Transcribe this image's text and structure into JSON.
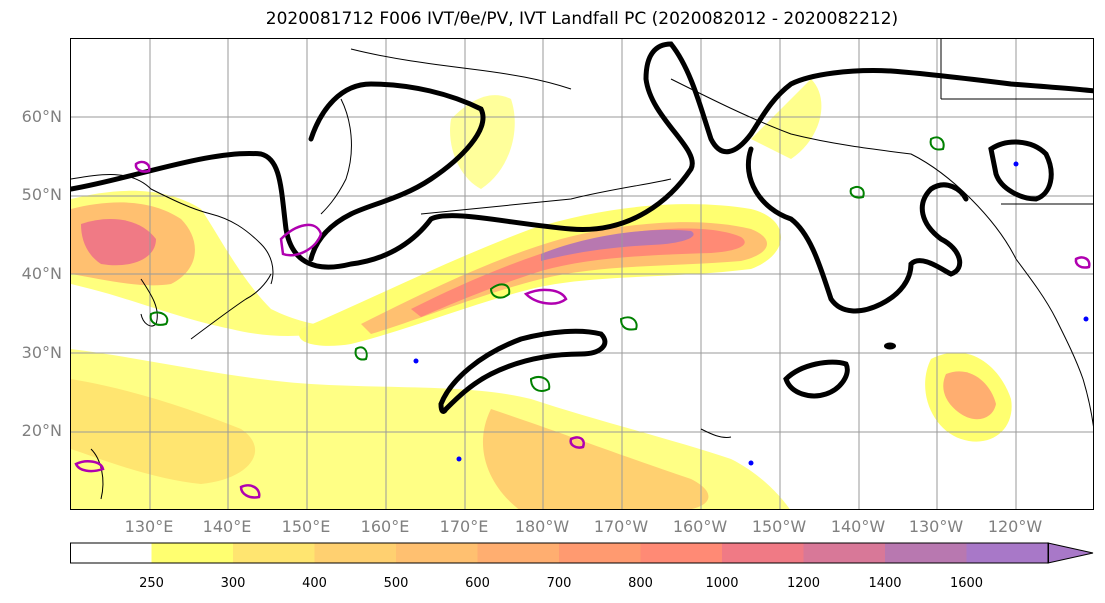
{
  "title": "2020081712 F006 IVT/θe/PV, IVT Landfall PC (2020082012 - 2020082212)",
  "map": {
    "lat_labels": [
      "60°N",
      "50°N",
      "40°N",
      "30°N",
      "20°N"
    ],
    "lon_labels": [
      "130°E",
      "140°E",
      "150°E",
      "160°E",
      "170°E",
      "180°W",
      "170°W",
      "160°W",
      "150°W",
      "140°W",
      "130°W",
      "120°W"
    ],
    "extent": {
      "lon_min": 120,
      "lon_max": 250,
      "lat_min": 10,
      "lat_max": 70
    },
    "gridlines": true,
    "colors": {
      "theta_e_contour": "#000000",
      "pv_green": "#008000",
      "pv_magenta": "#b000b0",
      "pv_blue": "#0000ff"
    }
  },
  "colorbar": {
    "ticks": [
      "250",
      "300",
      "400",
      "500",
      "600",
      "700",
      "800",
      "1000",
      "1200",
      "1400",
      "1600"
    ],
    "colors": [
      "#ffffff",
      "#ffff70",
      "#ffe570",
      "#ffd070",
      "#ffc070",
      "#ffae70",
      "#ff9a70",
      "#ff8a75",
      "#f07a85",
      "#d87898",
      "#b878b0",
      "#a878c8"
    ],
    "extend": "max"
  }
}
